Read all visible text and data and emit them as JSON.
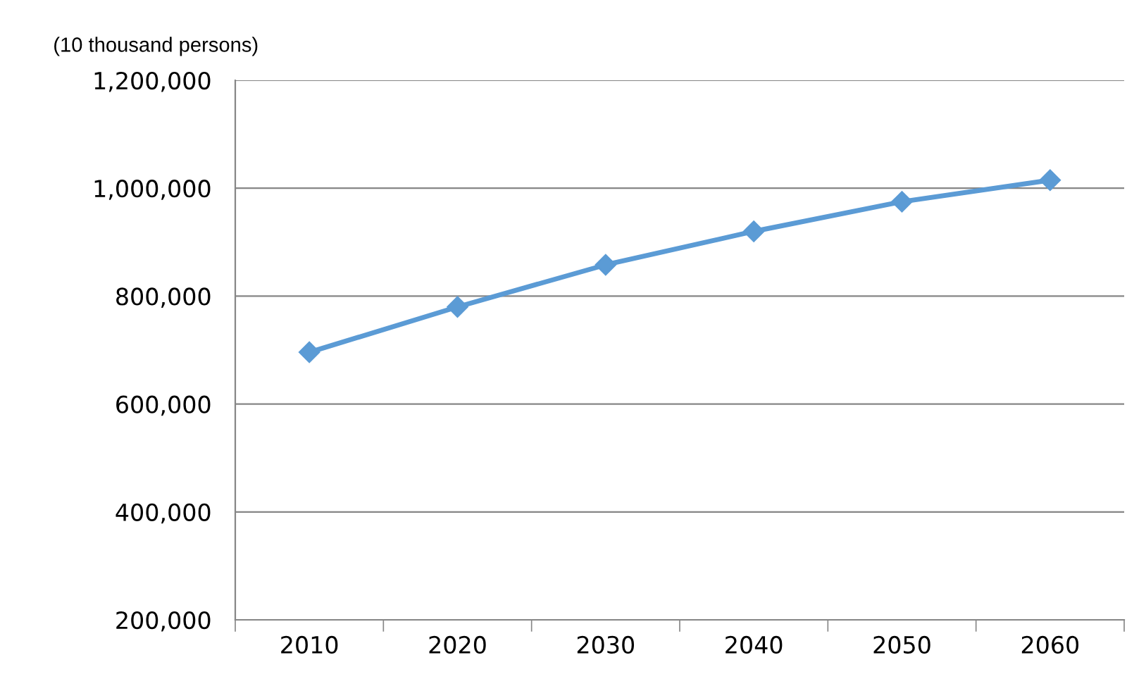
{
  "chart_data": {
    "type": "line",
    "ylabel": "(10 thousand persons)",
    "categories": [
      "2010",
      "2020",
      "2030",
      "2040",
      "2050",
      "2060"
    ],
    "series": [
      {
        "color": "#5b9bd5",
        "values": [
          696000,
          780000,
          858000,
          920000,
          975000,
          1015000
        ]
      }
    ],
    "ylim": [
      200000,
      1200000
    ],
    "yticks": [
      {
        "value": 200000,
        "label": "200,000"
      },
      {
        "value": 400000,
        "label": "400,000"
      },
      {
        "value": 600000,
        "label": "600,000"
      },
      {
        "value": 800000,
        "label": "800,000"
      },
      {
        "value": 1000000,
        "label": "1,000,000"
      },
      {
        "value": 1200000,
        "label": "1,200,000"
      }
    ],
    "grid": "y",
    "marker": "diamond",
    "line_style": "solid",
    "legend": false
  }
}
